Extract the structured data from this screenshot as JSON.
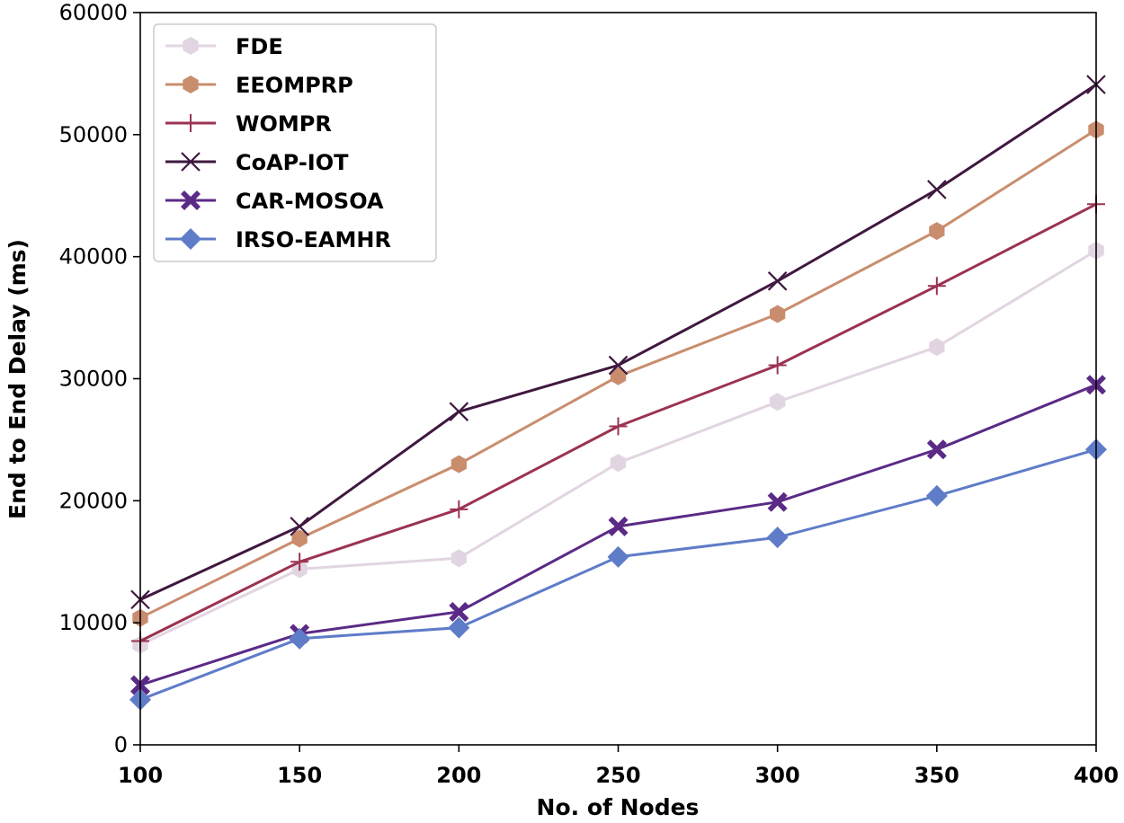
{
  "chart_data": {
    "type": "line",
    "title": "",
    "xlabel": "No. of Nodes",
    "ylabel": "End to End Delay (ms)",
    "x": [
      100,
      150,
      200,
      250,
      300,
      350,
      400
    ],
    "xticks": [
      "100",
      "150",
      "200",
      "250",
      "300",
      "350",
      "400"
    ],
    "xlim": [
      100,
      400
    ],
    "ylim": [
      0,
      60000
    ],
    "yticks": [
      "0",
      "10000",
      "20000",
      "30000",
      "40000",
      "50000",
      "60000"
    ],
    "grid": false,
    "legend_position": "top-left",
    "series": [
      {
        "name": "FDE",
        "color": "#e2d5e2",
        "marker": "hexagon",
        "values": [
          8200,
          14400,
          15300,
          23100,
          28100,
          32600,
          40500
        ]
      },
      {
        "name": "EEOMPRP",
        "color": "#c98d6e",
        "marker": "hexagon",
        "values": [
          10400,
          16900,
          23000,
          30200,
          35300,
          42100,
          50400
        ]
      },
      {
        "name": "WOMPR",
        "color": "#9b3350",
        "marker": "plus",
        "values": [
          8500,
          15000,
          19300,
          26100,
          31100,
          37600,
          44300
        ]
      },
      {
        "name": "CoAP-IOT",
        "color": "#3f1840",
        "marker": "x",
        "values": [
          11900,
          17900,
          27300,
          31100,
          38000,
          45500,
          54100
        ]
      },
      {
        "name": "CAR-MOSOA",
        "color": "#5b2a86",
        "marker": "x-filled",
        "values": [
          4900,
          9100,
          10900,
          17900,
          19900,
          24200,
          29500
        ]
      },
      {
        "name": "IRSO-EAMHR",
        "color": "#5f7cc8",
        "marker": "diamond",
        "values": [
          3700,
          8700,
          9600,
          15400,
          17000,
          20400,
          24200
        ]
      }
    ]
  }
}
